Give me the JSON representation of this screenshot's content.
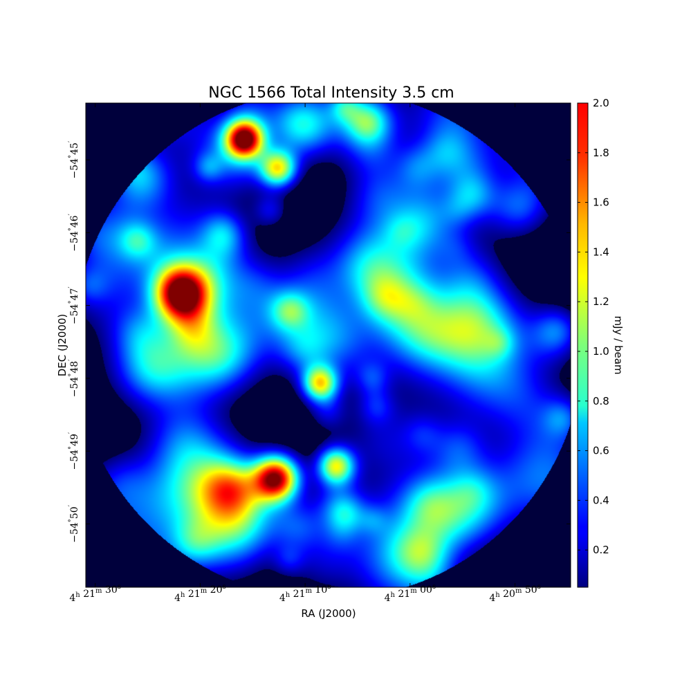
{
  "chart_data": {
    "type": "heatmap",
    "title": "NGC 1566 Total Intensity 3.5 cm",
    "xlabel": "RA (J2000)",
    "ylabel": "DEC (J2000)",
    "colorbar_label": "mJy / beam",
    "colormap": "jet",
    "background_color": "#00003c",
    "value_range": [
      0.05,
      2.0
    ],
    "colorbar_ticks": [
      {
        "value": 0.2,
        "label": "0.2"
      },
      {
        "value": 0.4,
        "label": "0.4"
      },
      {
        "value": 0.6,
        "label": "0.6"
      },
      {
        "value": 0.8,
        "label": "0.8"
      },
      {
        "value": 1.0,
        "label": "1.0"
      },
      {
        "value": 1.2,
        "label": "1.2"
      },
      {
        "value": 1.4,
        "label": "1.4"
      },
      {
        "value": 1.6,
        "label": "1.6"
      },
      {
        "value": 1.8,
        "label": "1.8"
      },
      {
        "value": 2.0,
        "label": "2.0"
      }
    ],
    "x_ticks": [
      {
        "h": "4",
        "m": "21",
        "s": "30",
        "ra_s": 90
      },
      {
        "h": "4",
        "m": "21",
        "s": "20",
        "ra_s": 80
      },
      {
        "h": "4",
        "m": "21",
        "s": "10",
        "ra_s": 70
      },
      {
        "h": "4",
        "m": "21",
        "s": "00",
        "ra_s": 60
      },
      {
        "h": "4",
        "m": "20",
        "s": "50",
        "ra_s": 50
      }
    ],
    "y_ticks": [
      {
        "deg": "−54",
        "min": "45",
        "dec_arcmin": -45
      },
      {
        "deg": "−54",
        "min": "46",
        "dec_arcmin": -46
      },
      {
        "deg": "−54",
        "min": "47",
        "dec_arcmin": -47
      },
      {
        "deg": "−54",
        "min": "48",
        "dec_arcmin": -48
      },
      {
        "deg": "−54",
        "min": "49",
        "dec_arcmin": -49
      },
      {
        "deg": "−54",
        "min": "50",
        "dec_arcmin": -50
      }
    ],
    "xlim_ra_s": [
      90.9,
      44.7
    ],
    "ylim_dec_arcmin": [
      -44.22,
      -50.87
    ],
    "field_of_view": {
      "center_ra_s": 67.8,
      "center_dec_arcmin": -47.53,
      "radius_arcmin": 3.5
    },
    "sources": [
      {
        "ra_s": 72.8,
        "dec_arcmin": -49.37,
        "peak_mjy": 2.0,
        "size_arcmin": 0.22
      },
      {
        "ra_s": 81.9,
        "dec_arcmin": -46.83,
        "peak_mjy": 2.0,
        "size_arcmin": 0.26
      },
      {
        "ra_s": 75.8,
        "dec_arcmin": -44.71,
        "peak_mjy": 1.85,
        "size_arcmin": 0.18
      },
      {
        "ra_s": 72.6,
        "dec_arcmin": -45.12,
        "peak_mjy": 1.3,
        "size_arcmin": 0.18
      },
      {
        "ra_s": 68.6,
        "dec_arcmin": -48.07,
        "peak_mjy": 1.3,
        "size_arcmin": 0.17
      },
      {
        "ra_s": 67.1,
        "dec_arcmin": -49.2,
        "peak_mjy": 1.3,
        "size_arcmin": 0.18
      }
    ]
  }
}
